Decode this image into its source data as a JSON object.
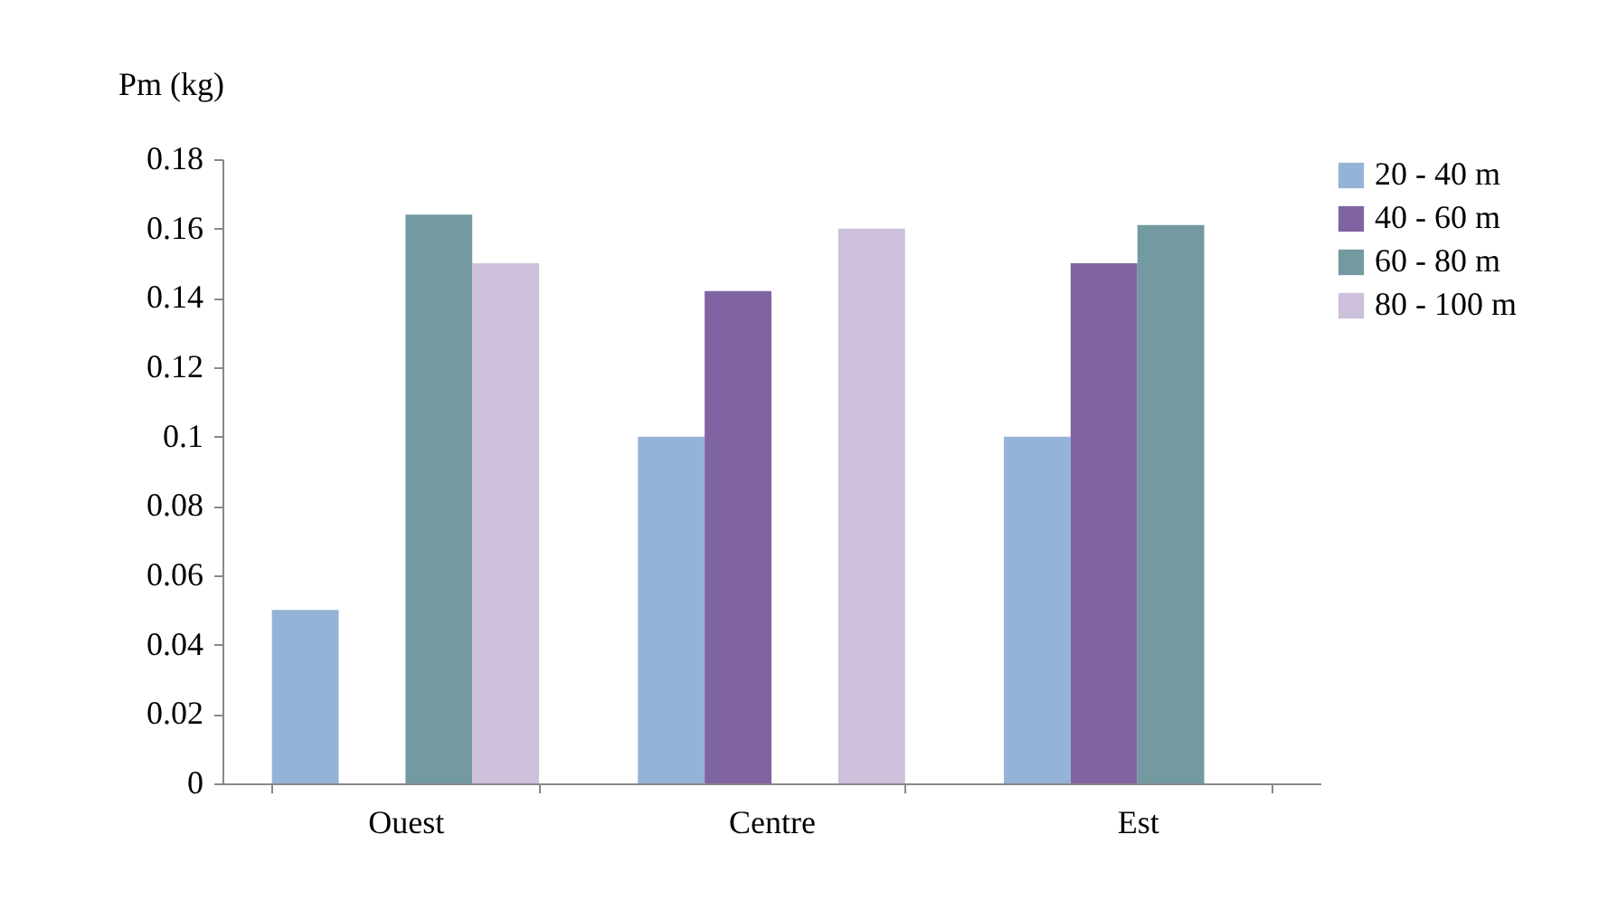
{
  "chart_data": {
    "type": "bar",
    "ylabel": "Pm (kg)",
    "categories": [
      "Ouest",
      "Centre",
      "Est"
    ],
    "series": [
      {
        "name": "20 - 40 m",
        "color": "#95b3d7",
        "values": [
          0.05,
          0.1,
          0.1
        ]
      },
      {
        "name": "40 - 60 m",
        "color": "#8064a2",
        "values": [
          null,
          0.142,
          0.15
        ]
      },
      {
        "name": "60 - 80 m",
        "color": "#729aa0",
        "values": [
          0.164,
          null,
          0.161
        ]
      },
      {
        "name": "80 - 100 m",
        "color": "#ccc0da",
        "values": [
          0.15,
          0.16,
          null
        ]
      }
    ],
    "ylim": [
      0,
      0.18
    ],
    "yticks": [
      0,
      0.02,
      0.04,
      0.06,
      0.08,
      0.1,
      0.12,
      0.14,
      0.16,
      0.18
    ],
    "legend": "top right"
  }
}
